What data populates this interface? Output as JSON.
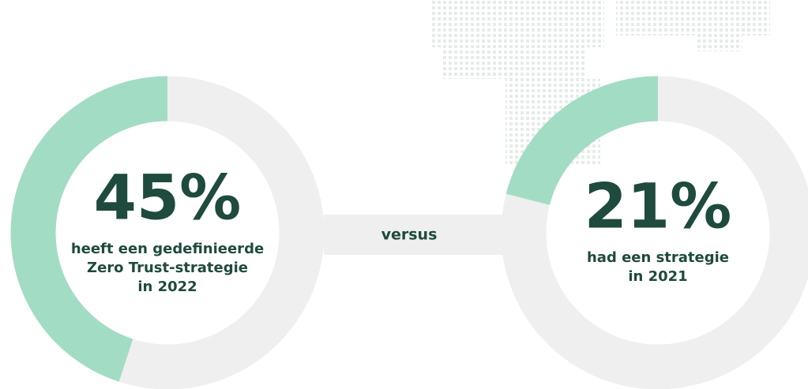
{
  "chart_data": [
    {
      "type": "donut",
      "values": [
        45
      ],
      "value_labels": [
        "45%"
      ],
      "color": "#a3dcc4",
      "caption": [
        "heeft een gedefinieerde",
        "Zero Trust-strategie",
        "in 2022"
      ]
    },
    {
      "type": "donut",
      "values": [
        21
      ],
      "value_labels": [
        "21%"
      ],
      "color": "#a3dcc4",
      "caption": [
        "had een strategie",
        "in 2021"
      ]
    }
  ],
  "connector": "versus"
}
